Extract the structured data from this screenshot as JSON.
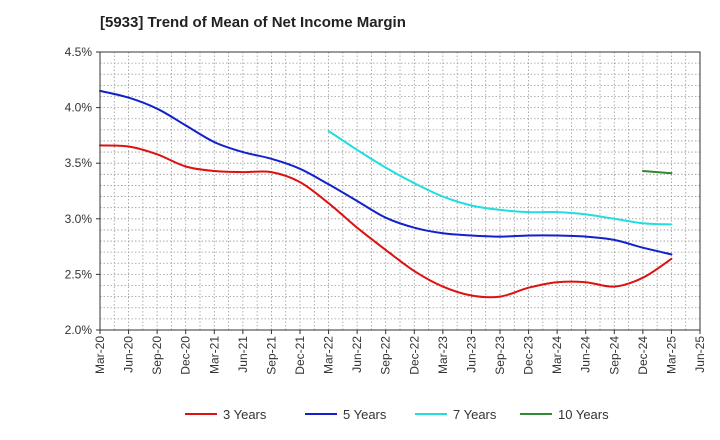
{
  "chart_data": {
    "type": "line",
    "title": "[5933]  Trend of Mean of Net Income Margin",
    "xlabel": "",
    "ylabel": "",
    "x_tick_labels": [
      "Mar-20",
      "Jun-20",
      "Sep-20",
      "Dec-20",
      "Mar-21",
      "Jun-21",
      "Sep-21",
      "Dec-21",
      "Mar-22",
      "Jun-22",
      "Sep-22",
      "Dec-22",
      "Mar-23",
      "Jun-23",
      "Sep-23",
      "Dec-23",
      "Mar-24",
      "Jun-24",
      "Sep-24",
      "Dec-24",
      "Mar-25",
      "Jun-25"
    ],
    "y_tick_labels": [
      "4.5%",
      "4.0%",
      "3.5%",
      "3.0%",
      "2.5%",
      "2.0%"
    ],
    "ylim": [
      2.0,
      4.5
    ],
    "y_unit": "%",
    "grid": true,
    "legend_position": "bottom",
    "series": [
      {
        "name": "3 Years",
        "color": "#dd1111",
        "points": [
          [
            "Mar-20",
            3.66
          ],
          [
            "Jun-20",
            3.65
          ],
          [
            "Sep-20",
            3.58
          ],
          [
            "Dec-20",
            3.47
          ],
          [
            "Mar-21",
            3.43
          ],
          [
            "Jun-21",
            3.42
          ],
          [
            "Sep-21",
            3.42
          ],
          [
            "Dec-21",
            3.33
          ],
          [
            "Mar-22",
            3.14
          ],
          [
            "Jun-22",
            2.92
          ],
          [
            "Sep-22",
            2.72
          ],
          [
            "Dec-22",
            2.53
          ],
          [
            "Mar-23",
            2.39
          ],
          [
            "Jun-23",
            2.31
          ],
          [
            "Sep-23",
            2.3
          ],
          [
            "Dec-23",
            2.38
          ],
          [
            "Mar-24",
            2.43
          ],
          [
            "Jun-24",
            2.43
          ],
          [
            "Sep-24",
            2.39
          ],
          [
            "Dec-24",
            2.47
          ],
          [
            "Mar-25",
            2.64
          ]
        ]
      },
      {
        "name": "5 Years",
        "color": "#1122cc",
        "points": [
          [
            "Mar-20",
            4.15
          ],
          [
            "Jun-20",
            4.09
          ],
          [
            "Sep-20",
            3.99
          ],
          [
            "Dec-20",
            3.84
          ],
          [
            "Mar-21",
            3.69
          ],
          [
            "Jun-21",
            3.6
          ],
          [
            "Sep-21",
            3.54
          ],
          [
            "Dec-21",
            3.45
          ],
          [
            "Mar-22",
            3.31
          ],
          [
            "Jun-22",
            3.16
          ],
          [
            "Sep-22",
            3.01
          ],
          [
            "Dec-22",
            2.92
          ],
          [
            "Mar-23",
            2.87
          ],
          [
            "Jun-23",
            2.85
          ],
          [
            "Sep-23",
            2.84
          ],
          [
            "Dec-23",
            2.85
          ],
          [
            "Mar-24",
            2.85
          ],
          [
            "Jun-24",
            2.84
          ],
          [
            "Sep-24",
            2.81
          ],
          [
            "Dec-24",
            2.74
          ],
          [
            "Mar-25",
            2.68
          ]
        ]
      },
      {
        "name": "7 Years",
        "color": "#22dddd",
        "points": [
          [
            "Mar-22",
            3.79
          ],
          [
            "Jun-22",
            3.62
          ],
          [
            "Sep-22",
            3.46
          ],
          [
            "Dec-22",
            3.32
          ],
          [
            "Mar-23",
            3.2
          ],
          [
            "Jun-23",
            3.12
          ],
          [
            "Sep-23",
            3.08
          ],
          [
            "Dec-23",
            3.06
          ],
          [
            "Mar-24",
            3.06
          ],
          [
            "Jun-24",
            3.04
          ],
          [
            "Sep-24",
            3.0
          ],
          [
            "Dec-24",
            2.96
          ],
          [
            "Mar-25",
            2.95
          ]
        ]
      },
      {
        "name": "10 Years",
        "color": "#338833",
        "points": [
          [
            "Dec-24",
            3.43
          ],
          [
            "Mar-25",
            3.41
          ]
        ]
      }
    ]
  }
}
